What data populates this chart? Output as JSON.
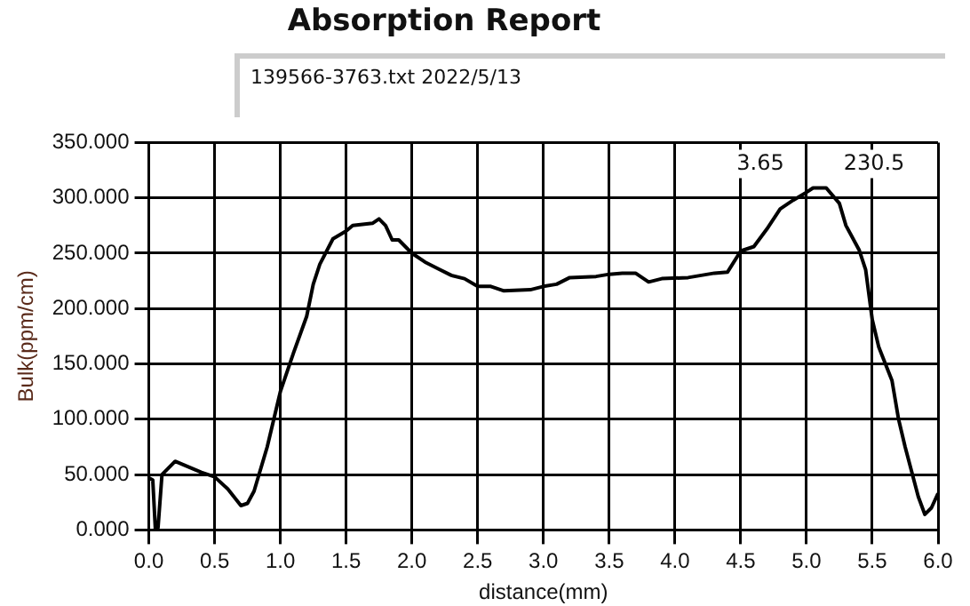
{
  "chart_data": {
    "type": "line",
    "title": "Absorption Report",
    "xlabel": "distance(mm)",
    "ylabel": "Bulk(ppm/cm)",
    "annotations": [
      "139566-3763.txt  2022/5/13",
      "3.65",
      "230.5"
    ],
    "x": [
      0,
      0.03,
      0.05,
      0.07,
      0.1,
      0.2,
      0.3,
      0.4,
      0.5,
      0.6,
      0.7,
      0.75,
      0.8,
      0.9,
      1.0,
      1.1,
      1.2,
      1.25,
      1.3,
      1.4,
      1.5,
      1.55,
      1.7,
      1.75,
      1.8,
      1.85,
      1.9,
      2.0,
      2.1,
      2.2,
      2.3,
      2.4,
      2.5,
      2.6,
      2.7,
      2.9,
      3.0,
      3.1,
      3.2,
      3.4,
      3.5,
      3.6,
      3.7,
      3.8,
      3.9,
      4.1,
      4.3,
      4.4,
      4.5,
      4.6,
      4.7,
      4.8,
      4.9,
      5.0,
      5.05,
      5.15,
      5.25,
      5.3,
      5.4,
      5.45,
      5.5,
      5.55,
      5.65,
      5.7,
      5.75,
      5.85,
      5.9,
      5.95,
      6.0
    ],
    "series": [
      {
        "color": "#000000",
        "values": [
          47,
          45,
          0,
          2,
          50,
          62,
          57,
          52,
          48,
          37,
          22,
          24,
          35,
          75,
          125,
          160,
          193,
          222,
          240,
          263,
          270,
          275,
          277,
          281,
          275,
          262,
          262,
          250,
          242,
          236,
          230,
          227,
          220,
          220,
          216,
          217,
          220,
          222,
          228,
          229,
          231,
          232,
          232,
          224,
          227,
          228,
          232,
          233,
          252,
          256,
          272,
          290,
          298,
          305,
          309,
          309,
          295,
          275,
          253,
          235,
          190,
          165,
          135,
          100,
          75,
          30,
          14,
          20,
          33
        ]
      }
    ],
    "xlim": [
      0,
      6
    ],
    "xticks": [
      {
        "value": 0,
        "label": "0.0"
      },
      {
        "value": 0.5,
        "label": "0.5"
      },
      {
        "value": 1,
        "label": "1.0"
      },
      {
        "value": 1.5,
        "label": "1.5"
      },
      {
        "value": 2,
        "label": "2.0"
      },
      {
        "value": 2.5,
        "label": "2.5"
      },
      {
        "value": 3,
        "label": "3.0"
      },
      {
        "value": 3.5,
        "label": "3.5"
      },
      {
        "value": 4,
        "label": "4.0"
      },
      {
        "value": 4.5,
        "label": "4.5"
      },
      {
        "value": 5,
        "label": "5.0"
      },
      {
        "value": 5.5,
        "label": "5.5"
      },
      {
        "value": 6,
        "label": "6.0"
      }
    ],
    "ylim": [
      0,
      350
    ],
    "yticks": [
      {
        "value": 0,
        "label": "0.000"
      },
      {
        "value": 50,
        "label": "50.000"
      },
      {
        "value": 100,
        "label": "100.000"
      },
      {
        "value": 150,
        "label": "150.000"
      },
      {
        "value": 200,
        "label": "200.000"
      },
      {
        "value": 250,
        "label": "250.000"
      },
      {
        "value": 300,
        "label": "300.000"
      },
      {
        "value": 350,
        "label": "350.000"
      }
    ],
    "grid": true,
    "legend": false,
    "marker": "none",
    "line_style": "solid"
  }
}
